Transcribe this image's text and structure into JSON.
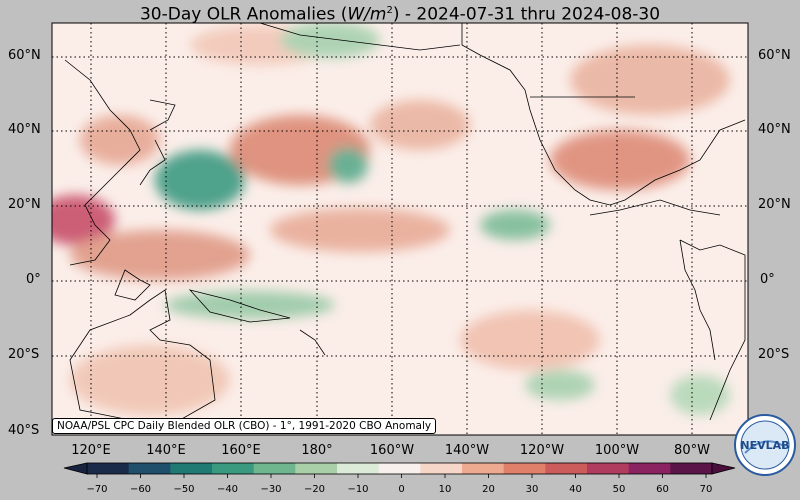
{
  "title_main": "30-Day OLR Anomalies (",
  "title_unit_base": "W/m",
  "title_unit_exp": "2",
  "title_rest": ") - 2024-07-31 thru 2024-08-30",
  "lat_labels": [
    "60°N",
    "40°N",
    "20°N",
    "0°",
    "20°S",
    "40°S"
  ],
  "lon_labels": [
    "120°E",
    "140°E",
    "160°E",
    "180°",
    "160°W",
    "140°W",
    "120°W",
    "100°W",
    "80°W"
  ],
  "credit": "NOAA/PSL CPC Daily Blended OLR (CBO) - 1°, 1991-2020 CBO Anomaly",
  "logo_text": "NEVLAB",
  "colorbar": {
    "ticks": [
      "−70",
      "−60",
      "−50",
      "−40",
      "−30",
      "−20",
      "−10",
      "0",
      "10",
      "20",
      "30",
      "40",
      "50",
      "60",
      "70"
    ],
    "colors": [
      "#1a2b4a",
      "#1f4f6a",
      "#1f7a74",
      "#3a9a80",
      "#6fb58e",
      "#a8cfa8",
      "#dcebd8",
      "#f8f0ec",
      "#f6d6c8",
      "#eeaa90",
      "#e0806a",
      "#cc5c5c",
      "#b03c60",
      "#8a2360",
      "#5a1448"
    ]
  },
  "colors": {
    "negative": "#2f8a78",
    "positive": "#d36b5e",
    "neutral": "#fbeee9",
    "background": "#c0c0c0"
  }
}
